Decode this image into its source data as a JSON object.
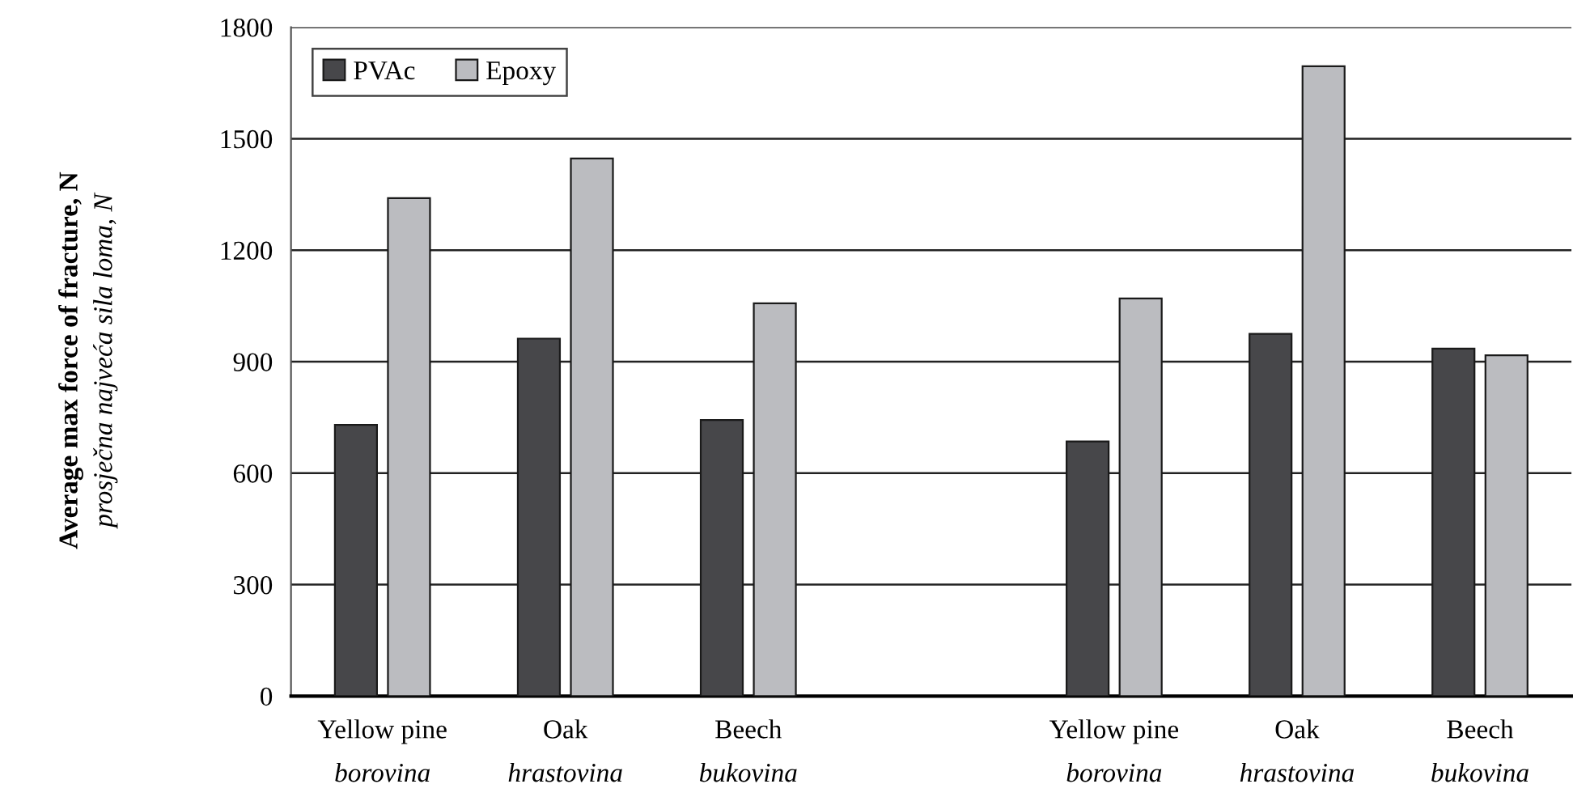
{
  "chart_data": {
    "type": "bar",
    "ylabel": "Average max force of fracture, N\nprosječna najveća sila loma, N",
    "categories": [
      "Yellow pine\nborovina",
      "Oak\nhrastovina",
      "Beech\nbukovina",
      null,
      "Yellow pine\nborovina",
      "Oak\nhrastovina",
      "Beech\nbukovina"
    ],
    "series": [
      {
        "name": "PVAc",
        "color": "#47474a",
        "values": [
          730,
          962,
          743,
          null,
          685,
          975,
          935
        ]
      },
      {
        "name": "Epoxy",
        "color": "#bbbcc0",
        "values": [
          1340,
          1447,
          1057,
          null,
          1070,
          1695,
          917
        ]
      }
    ],
    "ylim": [
      0,
      1800
    ],
    "yticks": [
      0,
      300,
      600,
      900,
      1200,
      1500,
      1800
    ],
    "grid": "y",
    "legend": "top left"
  }
}
